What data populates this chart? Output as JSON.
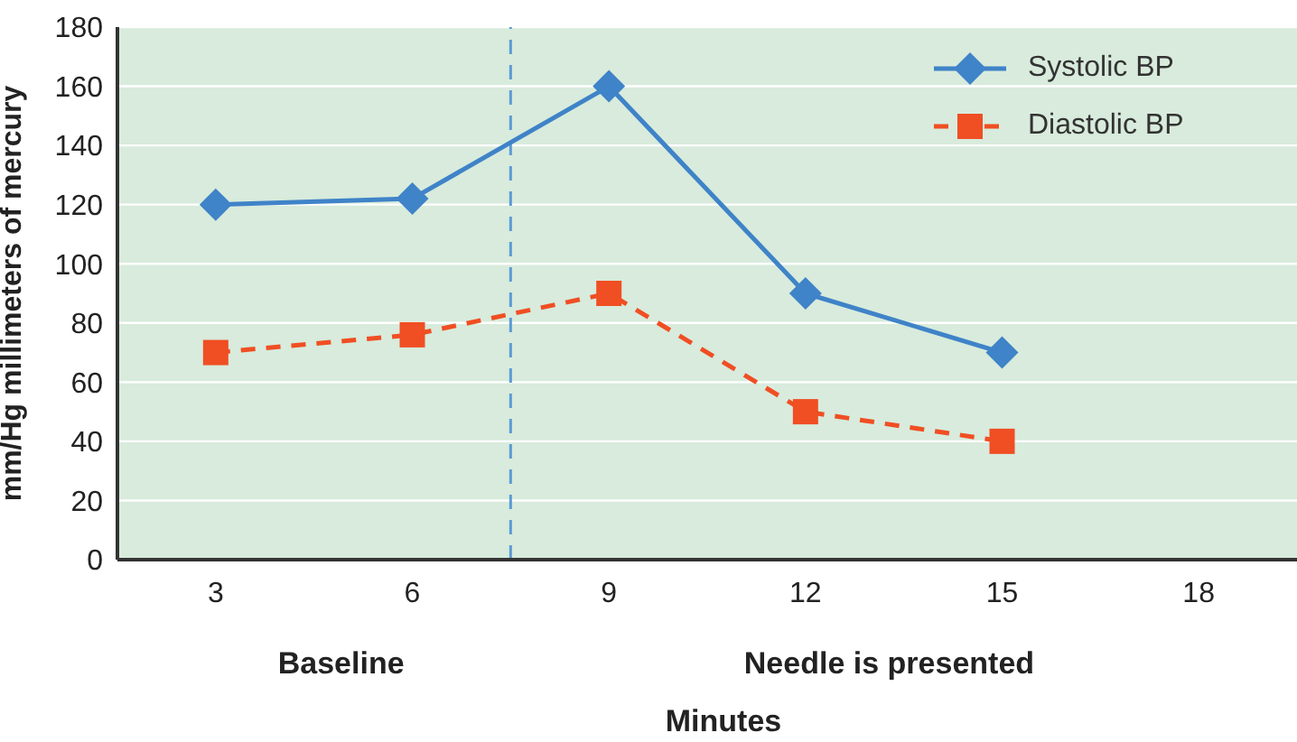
{
  "chart_data": {
    "type": "line",
    "xlabel": "Minutes",
    "ylabel": "mm/Hg millimeters of mercury",
    "x": [
      3,
      6,
      9,
      12,
      15
    ],
    "series": [
      {
        "name": "Systolic BP",
        "color": "#3f83c8",
        "values": [
          120,
          122,
          160,
          90,
          70
        ],
        "marker": "diamond",
        "line_style": "solid"
      },
      {
        "name": "Diastolic BP",
        "color": "#f04e23",
        "values": [
          70,
          76,
          90,
          50,
          40
        ],
        "marker": "square",
        "line_style": "dashed"
      }
    ],
    "xlim": [
      1.5,
      19.5
    ],
    "xticks": [
      3,
      6,
      9,
      12,
      15,
      18
    ],
    "ylim": [
      0,
      180
    ],
    "yticks": [
      0,
      20,
      40,
      60,
      80,
      100,
      120,
      140,
      160,
      180
    ],
    "grid": "y",
    "legend": "top right",
    "ref_lines": [
      {
        "axis": "x",
        "value": 7.5,
        "color": "#5b9bd5",
        "line_style": "dashed"
      }
    ],
    "annotations": [
      "Baseline",
      "Needle is presented"
    ]
  }
}
